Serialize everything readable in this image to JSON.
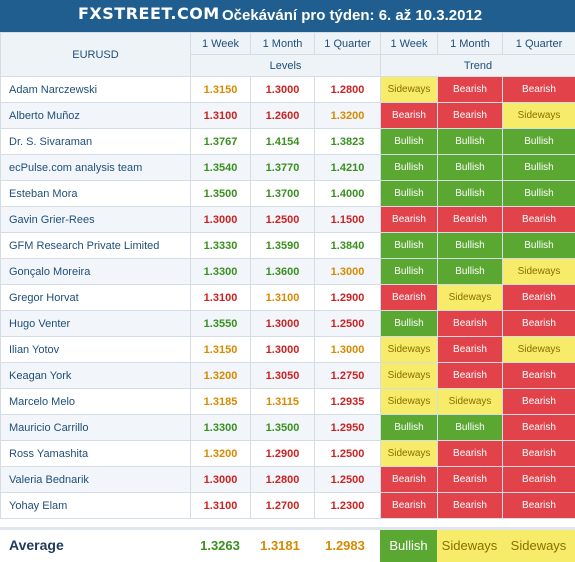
{
  "header": {
    "logo": "FXSTREET.COM",
    "title": "Očekávání pro týden: 6. až 10.3.2012"
  },
  "table": {
    "pair": "EURUSD",
    "periods": [
      "1 Week",
      "1 Month",
      "1 Quarter",
      "1 Week",
      "1 Month",
      "1 Quarter"
    ],
    "levels_label": "Levels",
    "trend_label": "Trend",
    "colors": {
      "bullish_bg": "#5aa832",
      "bearish_bg": "#e2434b",
      "sideways_bg": "#f6ec6a",
      "green_text": "#3a8f1f",
      "red_text": "#cc2222",
      "orange_text": "#d68a00",
      "header_bar": "#1f5e8f"
    },
    "rows": [
      {
        "name": "Adam Narczewski",
        "levels": [
          "1.3150",
          "1.3000",
          "1.2800"
        ],
        "level_colors": [
          "orange",
          "red",
          "red"
        ],
        "trend": [
          "Sideways",
          "Bearish",
          "Bearish"
        ]
      },
      {
        "name": "Alberto Muñoz",
        "levels": [
          "1.3100",
          "1.2600",
          "1.3200"
        ],
        "level_colors": [
          "red",
          "red",
          "orange"
        ],
        "trend": [
          "Bearish",
          "Bearish",
          "Sideways"
        ]
      },
      {
        "name": "Dr. S. Sivaraman",
        "levels": [
          "1.3767",
          "1.4154",
          "1.3823"
        ],
        "level_colors": [
          "green",
          "green",
          "green"
        ],
        "trend": [
          "Bullish",
          "Bullish",
          "Bullish"
        ]
      },
      {
        "name": "ecPulse.com analysis team",
        "levels": [
          "1.3540",
          "1.3770",
          "1.4210"
        ],
        "level_colors": [
          "green",
          "green",
          "green"
        ],
        "trend": [
          "Bullish",
          "Bullish",
          "Bullish"
        ]
      },
      {
        "name": "Esteban Mora",
        "levels": [
          "1.3500",
          "1.3700",
          "1.4000"
        ],
        "level_colors": [
          "green",
          "green",
          "green"
        ],
        "trend": [
          "Bullish",
          "Bullish",
          "Bullish"
        ]
      },
      {
        "name": "Gavin Grier-Rees",
        "levels": [
          "1.3000",
          "1.2500",
          "1.1500"
        ],
        "level_colors": [
          "red",
          "red",
          "red"
        ],
        "trend": [
          "Bearish",
          "Bearish",
          "Bearish"
        ]
      },
      {
        "name": "GFM Research Private Limited",
        "levels": [
          "1.3330",
          "1.3590",
          "1.3840"
        ],
        "level_colors": [
          "green",
          "green",
          "green"
        ],
        "trend": [
          "Bullish",
          "Bullish",
          "Bullish"
        ]
      },
      {
        "name": "Gonçalo Moreira",
        "levels": [
          "1.3300",
          "1.3600",
          "1.3000"
        ],
        "level_colors": [
          "green",
          "green",
          "orange"
        ],
        "trend": [
          "Bullish",
          "Bullish",
          "Sideways"
        ]
      },
      {
        "name": "Gregor Horvat",
        "levels": [
          "1.3100",
          "1.3100",
          "1.2900"
        ],
        "level_colors": [
          "red",
          "orange",
          "red"
        ],
        "trend": [
          "Bearish",
          "Sideways",
          "Bearish"
        ]
      },
      {
        "name": "Hugo Venter",
        "levels": [
          "1.3550",
          "1.3000",
          "1.2500"
        ],
        "level_colors": [
          "green",
          "red",
          "red"
        ],
        "trend": [
          "Bullish",
          "Bearish",
          "Bearish"
        ]
      },
      {
        "name": "Ilian Yotov",
        "levels": [
          "1.3150",
          "1.3000",
          "1.3000"
        ],
        "level_colors": [
          "orange",
          "red",
          "orange"
        ],
        "trend": [
          "Sideways",
          "Bearish",
          "Sideways"
        ]
      },
      {
        "name": "Keagan York",
        "levels": [
          "1.3200",
          "1.3050",
          "1.2750"
        ],
        "level_colors": [
          "orange",
          "red",
          "red"
        ],
        "trend": [
          "Sideways",
          "Bearish",
          "Bearish"
        ]
      },
      {
        "name": "Marcelo Melo",
        "levels": [
          "1.3185",
          "1.3115",
          "1.2935"
        ],
        "level_colors": [
          "orange",
          "orange",
          "red"
        ],
        "trend": [
          "Sideways",
          "Sideways",
          "Bearish"
        ]
      },
      {
        "name": "Mauricio Carrillo",
        "levels": [
          "1.3300",
          "1.3500",
          "1.2950"
        ],
        "level_colors": [
          "green",
          "green",
          "red"
        ],
        "trend": [
          "Bullish",
          "Bullish",
          "Bearish"
        ]
      },
      {
        "name": "Ross Yamashita",
        "levels": [
          "1.3200",
          "1.2900",
          "1.2500"
        ],
        "level_colors": [
          "orange",
          "red",
          "red"
        ],
        "trend": [
          "Sideways",
          "Bearish",
          "Bearish"
        ]
      },
      {
        "name": "Valeria Bednarik",
        "levels": [
          "1.3000",
          "1.2800",
          "1.2500"
        ],
        "level_colors": [
          "red",
          "red",
          "red"
        ],
        "trend": [
          "Bearish",
          "Bearish",
          "Bearish"
        ]
      },
      {
        "name": "Yohay Elam",
        "levels": [
          "1.3100",
          "1.2700",
          "1.2300"
        ],
        "level_colors": [
          "red",
          "red",
          "red"
        ],
        "trend": [
          "Bearish",
          "Bearish",
          "Bearish"
        ]
      }
    ],
    "average": {
      "label": "Average",
      "levels": [
        "1.3263",
        "1.3181",
        "1.2983"
      ],
      "level_colors": [
        "green",
        "orange",
        "orange"
      ],
      "trend": [
        "Bullish",
        "Sideways",
        "Sideways"
      ]
    }
  }
}
